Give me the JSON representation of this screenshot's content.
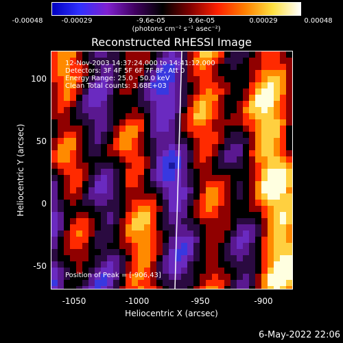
{
  "colorbar": {
    "ticks": [
      "-0.00048",
      "-0.00029",
      "-9.6e-05",
      "9.6e-05",
      "0.00029",
      "0.00048"
    ],
    "units": "(photons cm⁻² s⁻¹ asec⁻²)",
    "colors": [
      "#0000c0",
      "#3030ff",
      "#8020d0",
      "#400060",
      "#000000",
      "#800000",
      "#ff2000",
      "#ff8000",
      "#ffe040",
      "#ffffff"
    ]
  },
  "title": "Reconstructed RHESSI Image",
  "annotations": {
    "time": "12-Nov-2003 14:37:24.000 to 14:41:12.000",
    "detectors": "Detectors: 3F 4F 5F 6F 7F 8F, Att 0",
    "energy": "Energy Range: 25.0 - 50.0 keV",
    "clean": "Clean     Total counts: 3.68E+03",
    "peak": "Position of Peak = [-906,43]"
  },
  "axes": {
    "xlabel": "Heliocentric X (arcsec)",
    "ylabel": "Heliocentric Y (arcsec)",
    "xticks": [
      "-1050",
      "-1000",
      "-950",
      "-900"
    ],
    "yticks": [
      "100",
      "50",
      "0",
      "-50"
    ],
    "xlim": [
      -1068,
      -877
    ],
    "ylim": [
      -67,
      120
    ]
  },
  "limb_line": {
    "color": "#ffffff"
  },
  "timestamp": "6-May-2022 22:06"
}
